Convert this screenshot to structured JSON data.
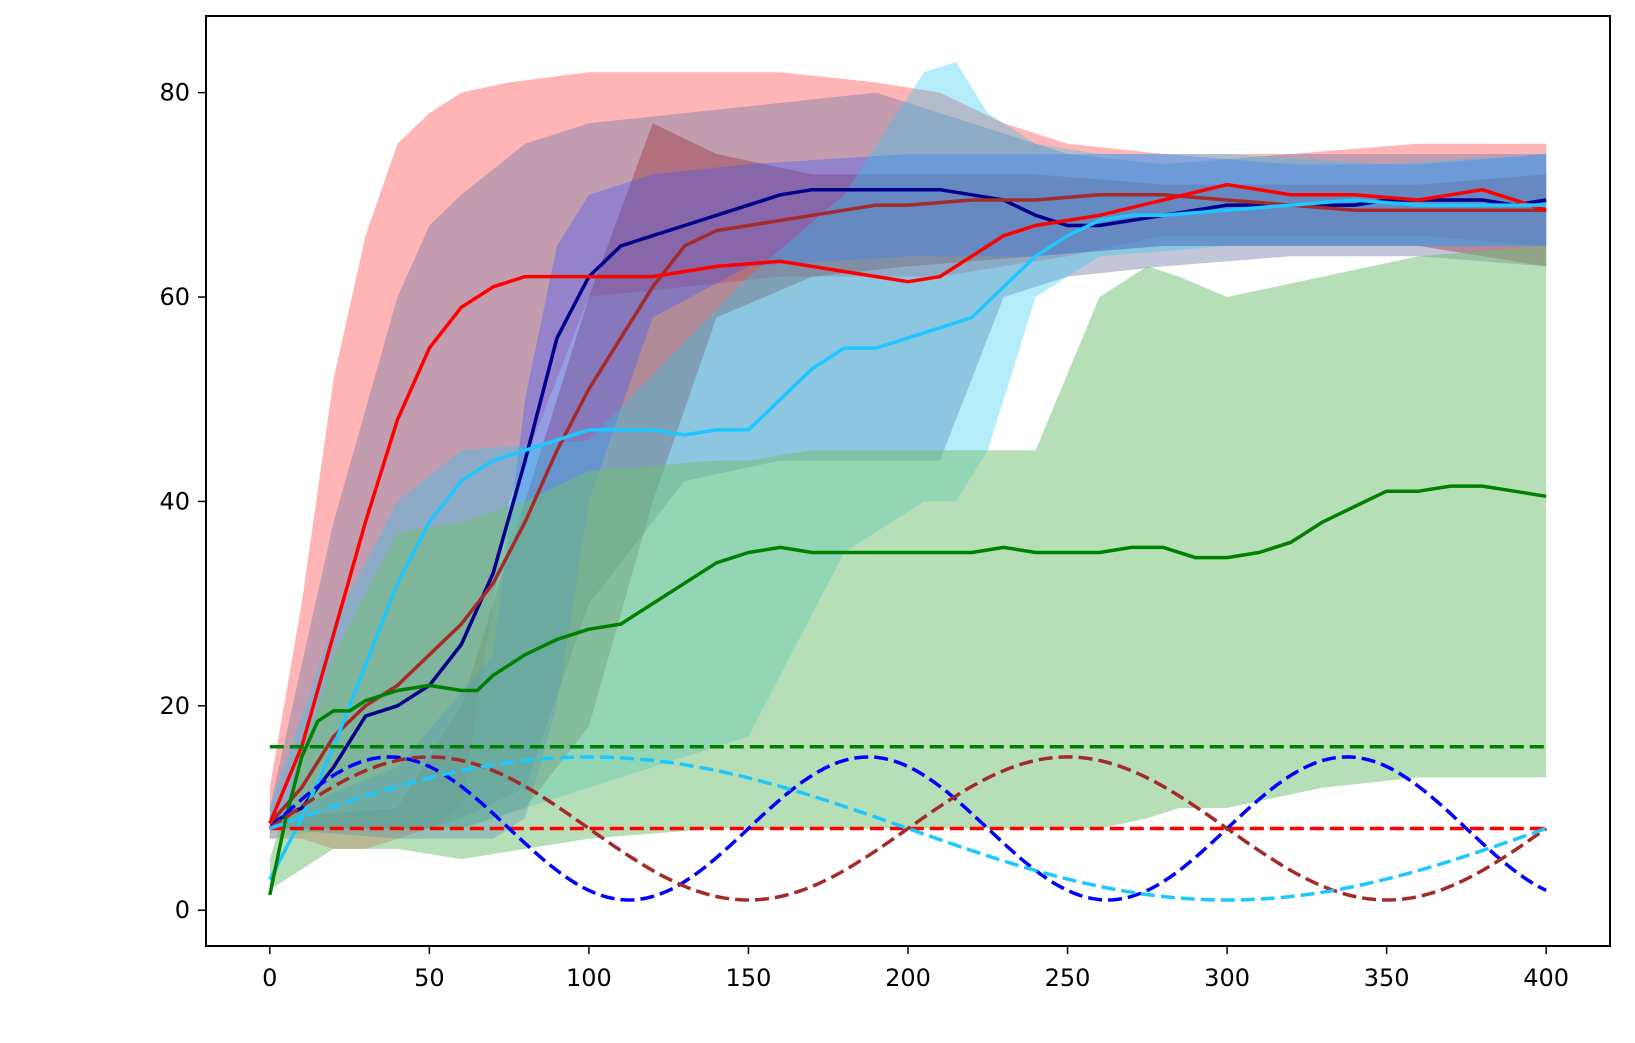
{
  "chart_data": {
    "type": "line",
    "title": "",
    "xlabel": "",
    "ylabel": "",
    "xlim": [
      -20,
      420
    ],
    "ylim": [
      -3.5,
      87.5
    ],
    "grid": false,
    "x_ticks": [
      0,
      50,
      100,
      150,
      200,
      250,
      300,
      350,
      400
    ],
    "y_ticks": [
      0,
      20,
      40,
      60,
      80
    ],
    "x_tick_labels": [
      "0",
      "50",
      "100",
      "150",
      "200",
      "250",
      "300",
      "350",
      "400"
    ],
    "y_tick_labels": [
      "0",
      "20",
      "40",
      "60",
      "80"
    ],
    "bands": [
      {
        "color": "#ff6b6b",
        "opacity": 0.5,
        "x": [
          0,
          10,
          20,
          30,
          40,
          50,
          60,
          75,
          100,
          130,
          160,
          190,
          210,
          230,
          250,
          280,
          320,
          360,
          400
        ],
        "upper": [
          12,
          30,
          52,
          66,
          75,
          78,
          80,
          81,
          82,
          82,
          82,
          81,
          80,
          77,
          75,
          74,
          74,
          75,
          75
        ],
        "lower": [
          7,
          7,
          6,
          6,
          7,
          8,
          10,
          40,
          60,
          61,
          62,
          62,
          62,
          63,
          64,
          66,
          66,
          66,
          65
        ]
      },
      {
        "color": "#7b7fa8",
        "opacity": 0.45,
        "x": [
          0,
          20,
          40,
          50,
          60,
          80,
          100,
          130,
          160,
          190,
          210,
          230,
          250,
          280,
          320,
          360,
          400
        ],
        "upper": [
          10,
          38,
          60,
          67,
          70,
          75,
          77,
          78,
          79,
          80,
          78,
          76,
          74,
          73,
          74,
          74,
          74
        ],
        "lower": [
          8,
          8,
          8,
          8,
          9,
          12,
          30,
          42,
          44,
          44,
          44,
          60,
          62,
          63,
          64,
          64,
          63
        ]
      },
      {
        "color": "#8b2020",
        "opacity": 0.35,
        "x": [
          0,
          40,
          60,
          80,
          100,
          120,
          140,
          170,
          200,
          240,
          280,
          320,
          360,
          400
        ],
        "upper": [
          9,
          10,
          20,
          40,
          60,
          77,
          74,
          72,
          72,
          72,
          71,
          71,
          71,
          72
        ],
        "lower": [
          8,
          8,
          8,
          10,
          18,
          40,
          58,
          62,
          63,
          64,
          65,
          65,
          65,
          63
        ]
      },
      {
        "color": "#3b55ff",
        "opacity": 0.35,
        "x": [
          0,
          40,
          70,
          80,
          90,
          100,
          120,
          150,
          200,
          240,
          280,
          320,
          360,
          400
        ],
        "upper": [
          9,
          14,
          25,
          50,
          65,
          70,
          72,
          73,
          74,
          74,
          74,
          73,
          73,
          74
        ],
        "lower": [
          8,
          7,
          7,
          9,
          20,
          40,
          58,
          63,
          64,
          64,
          65,
          65,
          65,
          65
        ]
      },
      {
        "color": "#28c8f0",
        "opacity": 0.35,
        "x": [
          0,
          20,
          40,
          60,
          100,
          150,
          180,
          205,
          215,
          225,
          240,
          260,
          300,
          350,
          400
        ],
        "upper": [
          10,
          28,
          40,
          45,
          46,
          62,
          70,
          82,
          83,
          78,
          75,
          74,
          74,
          73,
          74
        ],
        "lower": [
          7,
          8,
          8,
          8,
          12,
          17,
          35,
          40,
          40,
          45,
          60,
          64,
          65,
          65,
          65
        ]
      },
      {
        "color": "#6fbf6f",
        "opacity": 0.5,
        "x": [
          0,
          20,
          40,
          60,
          80,
          100,
          140,
          150,
          170,
          200,
          240,
          260,
          275,
          285,
          300,
          330,
          360,
          400
        ],
        "upper": [
          5,
          25,
          37,
          38,
          40,
          43,
          44,
          44,
          45,
          45,
          45,
          60,
          63,
          62,
          60,
          62,
          64,
          65
        ],
        "lower": [
          2,
          6,
          6,
          5,
          6,
          7,
          8,
          8,
          8,
          8,
          8,
          8,
          9,
          10,
          10,
          12,
          13,
          13
        ]
      }
    ],
    "series": [
      {
        "color": "#00008b",
        "dash": false,
        "x": [
          0,
          10,
          20,
          30,
          40,
          50,
          60,
          70,
          80,
          90,
          100,
          110,
          120,
          130,
          140,
          150,
          160,
          170,
          180,
          190,
          200,
          210,
          220,
          230,
          240,
          250,
          260,
          270,
          280,
          290,
          300,
          310,
          320,
          330,
          340,
          350,
          360,
          370,
          380,
          390,
          400
        ],
        "y": [
          8.5,
          10,
          14,
          19,
          20,
          22,
          26,
          33,
          44,
          56,
          62,
          65,
          66,
          67,
          68,
          69,
          70,
          70.5,
          70.5,
          70.5,
          70.5,
          70.5,
          70,
          69.5,
          68,
          67,
          67,
          67.5,
          68,
          68.5,
          69,
          69,
          69,
          69,
          69,
          69.5,
          69.5,
          69.5,
          69.5,
          69,
          69.5
        ]
      },
      {
        "color": "#a52a2a",
        "dash": false,
        "x": [
          0,
          10,
          20,
          30,
          40,
          50,
          60,
          70,
          80,
          90,
          100,
          110,
          120,
          130,
          140,
          150,
          160,
          170,
          180,
          190,
          200,
          220,
          240,
          260,
          280,
          300,
          320,
          340,
          360,
          380,
          400
        ],
        "y": [
          8.5,
          12,
          17,
          20,
          22,
          25,
          28,
          32,
          38,
          45,
          51,
          56,
          61,
          65,
          66.5,
          67,
          67.5,
          68,
          68.5,
          69,
          69,
          69.5,
          69.5,
          70,
          70,
          69.5,
          69,
          68.5,
          68.5,
          68.5,
          68.5
        ]
      },
      {
        "color": "#ff0000",
        "dash": false,
        "x": [
          0,
          10,
          20,
          30,
          40,
          50,
          60,
          70,
          80,
          100,
          120,
          140,
          160,
          180,
          200,
          210,
          220,
          230,
          240,
          260,
          280,
          300,
          310,
          320,
          340,
          360,
          380,
          400
        ],
        "y": [
          8.5,
          16,
          27,
          38,
          48,
          55,
          59,
          61,
          62,
          62,
          62,
          63,
          63.5,
          62.5,
          61.5,
          62,
          64,
          66,
          67,
          68,
          69.5,
          71,
          70.5,
          70,
          70,
          69.5,
          70.5,
          68.5
        ]
      },
      {
        "color": "#1ec8ff",
        "dash": false,
        "x": [
          0,
          10,
          20,
          30,
          40,
          50,
          60,
          70,
          80,
          90,
          100,
          110,
          120,
          130,
          140,
          150,
          160,
          170,
          180,
          190,
          200,
          210,
          220,
          230,
          240,
          250,
          260,
          270,
          280,
          300,
          320,
          340,
          360,
          380,
          400
        ],
        "y": [
          3,
          9,
          16,
          24,
          32,
          38,
          42,
          44,
          45,
          46,
          47,
          47,
          47,
          46.5,
          47,
          47,
          50,
          53,
          55,
          55,
          56,
          57,
          58,
          61,
          64,
          66,
          67.5,
          68,
          68,
          68.5,
          69,
          69.5,
          69,
          69,
          69
        ]
      },
      {
        "color": "#008000",
        "dash": false,
        "x": [
          0,
          5,
          10,
          15,
          20,
          25,
          30,
          40,
          50,
          60,
          65,
          70,
          80,
          90,
          100,
          110,
          120,
          130,
          140,
          150,
          160,
          170,
          180,
          190,
          200,
          210,
          220,
          230,
          240,
          250,
          260,
          270,
          280,
          290,
          300,
          310,
          320,
          330,
          340,
          350,
          360,
          370,
          380,
          390,
          400
        ],
        "y": [
          1.5,
          9,
          15,
          18.5,
          19.5,
          19.5,
          20.5,
          21.5,
          22,
          21.5,
          21.5,
          23,
          25,
          26.5,
          27.5,
          28,
          30,
          32,
          34,
          35,
          35.5,
          35,
          35,
          35,
          35,
          35,
          35,
          35.5,
          35,
          35,
          35,
          35.5,
          35.5,
          34.5,
          34.5,
          35,
          36,
          38,
          39.5,
          41,
          41,
          41.5,
          41.5,
          41,
          40.5
        ]
      },
      {
        "color": "#008000",
        "dash": true,
        "kind": "const",
        "value": 16,
        "x0": 0,
        "x1": 400
      },
      {
        "color": "#ff0000",
        "dash": true,
        "kind": "const",
        "value": 8,
        "x0": 0,
        "x1": 400
      },
      {
        "color": "#0000ff",
        "dash": true,
        "kind": "sine",
        "mid": 8,
        "amp": 7,
        "period": 150,
        "phase_zero": 0,
        "x0": 0,
        "x1": 400
      },
      {
        "color": "#a52a2a",
        "dash": true,
        "kind": "sine",
        "mid": 8,
        "amp": 7,
        "period": 200,
        "phase_zero": 0,
        "x0": 0,
        "x1": 400
      },
      {
        "color": "#1ec8ff",
        "dash": true,
        "kind": "sine",
        "mid": 8,
        "amp": 7,
        "period": 400,
        "phase_zero": 0,
        "x0": 0,
        "x1": 400
      }
    ]
  }
}
